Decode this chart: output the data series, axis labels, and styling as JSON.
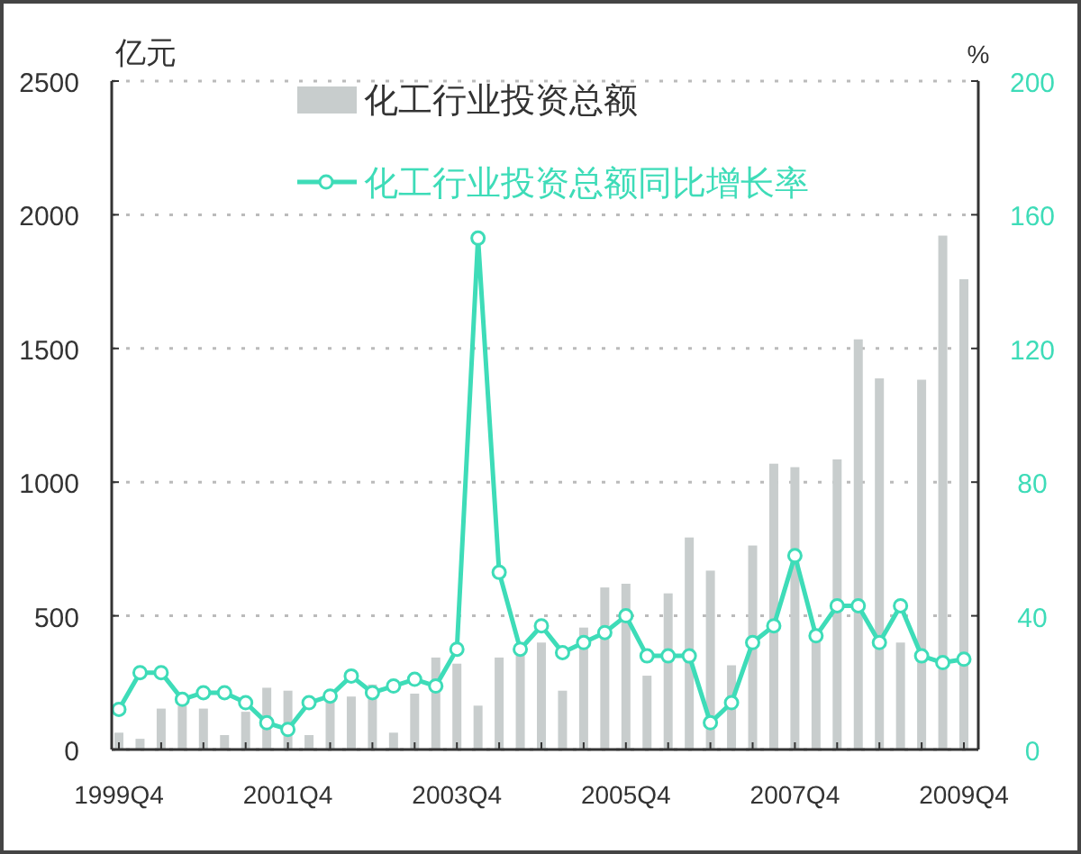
{
  "chart_data": {
    "type": "bar",
    "ylabel": "亿元",
    "y2label": "%",
    "categories": [
      "1999Q4",
      null,
      null,
      null,
      null,
      null,
      null,
      null,
      "2001Q4",
      null,
      null,
      null,
      null,
      null,
      null,
      null,
      "2003Q4",
      null,
      null,
      null,
      null,
      null,
      null,
      null,
      "2005Q4",
      null,
      null,
      null,
      null,
      null,
      null,
      null,
      "2007Q4",
      null,
      null,
      null,
      null,
      null,
      null,
      null,
      "2009Q4"
    ],
    "series": [
      {
        "name": "化工行业投资总额",
        "color": "#c8cdcd",
        "values": [
          63,
          40,
          153,
          164,
          153,
          54,
          141,
          231,
          220,
          54,
          187,
          198,
          243,
          63,
          209,
          344,
          321,
          164,
          344,
          366,
          400,
          220,
          456,
          606,
          620,
          276,
          584,
          793,
          669,
          315,
          763,
          1069,
          1056,
          424,
          1085,
          1534,
          1388,
          400,
          1383,
          1922,
          1759
        ]
      },
      {
        "name": "化工行业投资总额同比增长率",
        "type": "line",
        "axis": "y2",
        "color": "#3edcb8",
        "marker": "circle",
        "values": [
          12,
          23,
          23,
          15,
          17,
          17,
          14,
          8,
          6,
          14,
          16,
          22,
          17,
          19,
          21,
          19,
          30,
          153,
          53,
          30,
          37,
          29,
          32,
          35,
          40,
          28,
          28,
          28,
          8,
          14,
          32,
          37,
          58,
          34,
          43,
          43,
          32,
          43,
          28,
          26,
          27
        ]
      }
    ],
    "ylim": [
      0,
      2500
    ],
    "yticks": [
      0,
      500,
      1000,
      1500,
      2000,
      2500
    ],
    "y2lim": [
      0,
      200
    ],
    "y2ticks": [
      0,
      40,
      80,
      120,
      160,
      200
    ],
    "grid": "y",
    "legend": "top"
  }
}
